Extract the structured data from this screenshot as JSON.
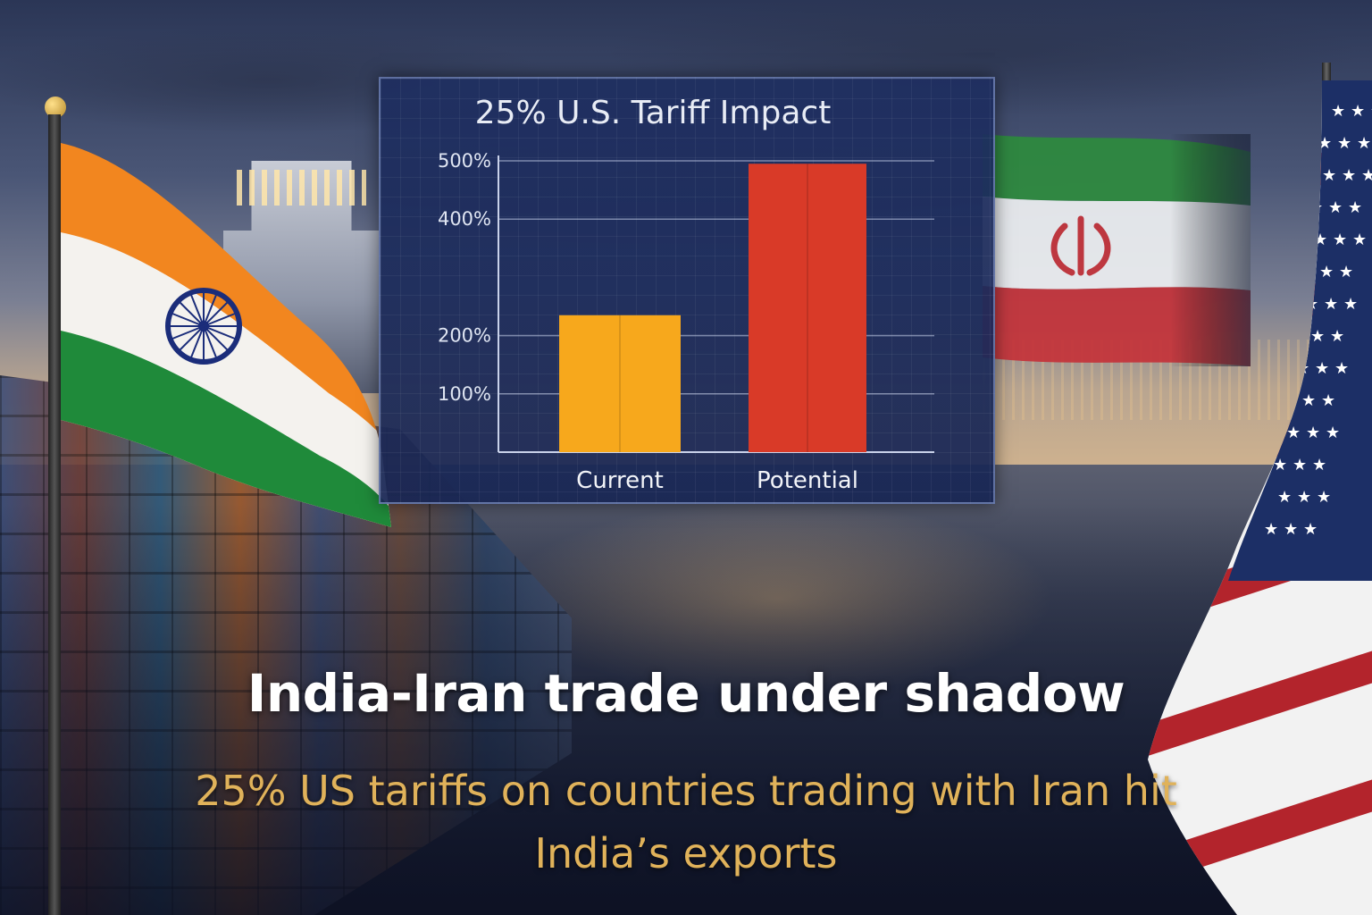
{
  "headline": "India-Iran trade under shadow",
  "subheadline": "25% US tariffs on countries trading with Iran hit India’s exports",
  "colors": {
    "current_bar": "#f7a81c",
    "potential_bar": "#d93a28",
    "subheadline": "#e0b25a",
    "panel": "#1e2e60"
  },
  "chart_data": {
    "type": "bar",
    "title": "25% U.S. Tariff Impact",
    "categories": [
      "Current",
      "Potential"
    ],
    "values": [
      235,
      495
    ],
    "ytick_values": [
      100,
      200,
      400,
      500
    ],
    "ytick_labels": [
      "100%",
      "200%",
      "400%",
      "500%"
    ],
    "ylim": [
      0,
      500
    ],
    "grid": true,
    "xlabel": "",
    "ylabel": ""
  }
}
